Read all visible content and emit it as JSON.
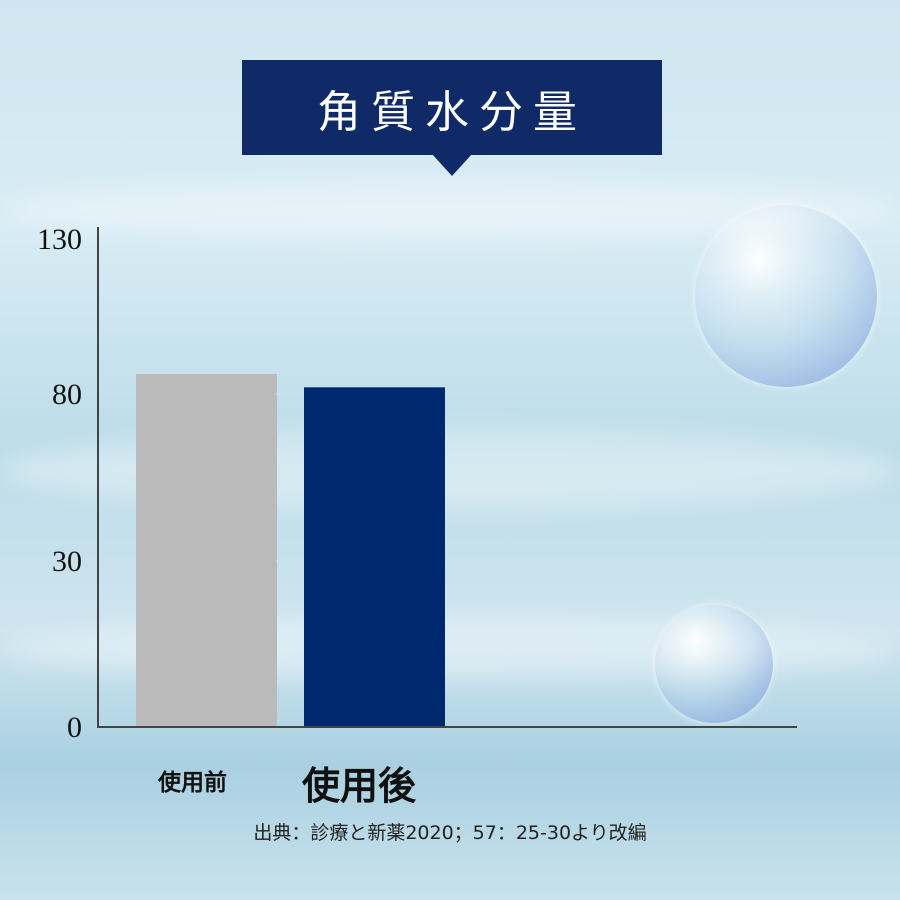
{
  "chart_data": {
    "type": "bar",
    "title": "角質水分量",
    "categories": [
      "使用前",
      "使用後"
    ],
    "values": [
      86,
      82
    ],
    "colors": [
      "#bababa",
      "#00286e"
    ],
    "yticks": [
      0,
      30,
      80,
      130
    ],
    "ylim": [
      0,
      130
    ],
    "grid": false,
    "xlabel": "",
    "ylabel": ""
  },
  "source": "出典：診療と新薬2020；57：25-30より改編"
}
